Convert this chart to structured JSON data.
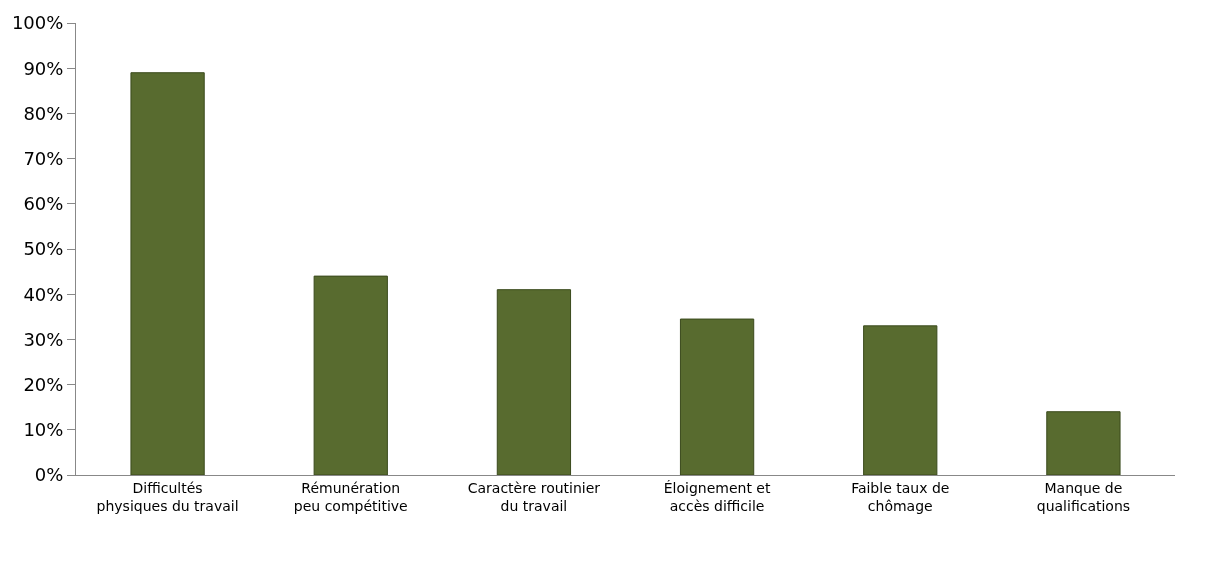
{
  "chart_data": {
    "type": "bar",
    "categories": [
      "Difficultés\nphysiques du travail",
      "Rémunération\npeu compétitive",
      "Caractère routinier\ndu travail",
      "Éloignement et\naccès difficile",
      "Faible taux de\nchômage",
      "Manque de\nqualifications"
    ],
    "values": [
      89,
      44,
      41,
      34.5,
      33,
      14
    ],
    "color": "#586b2f",
    "ylim": [
      0,
      100
    ],
    "yticks": [
      {
        "value": 0,
        "label": "0%"
      },
      {
        "value": 10,
        "label": "10%"
      },
      {
        "value": 20,
        "label": "20%"
      },
      {
        "value": 30,
        "label": "30%"
      },
      {
        "value": 40,
        "label": "40%"
      },
      {
        "value": 50,
        "label": "50%"
      },
      {
        "value": 60,
        "label": "60%"
      },
      {
        "value": 70,
        "label": "70%"
      },
      {
        "value": 80,
        "label": "80%"
      },
      {
        "value": 90,
        "label": "90%"
      },
      {
        "value": 100,
        "label": "100%"
      }
    ],
    "ylabel": null
  }
}
